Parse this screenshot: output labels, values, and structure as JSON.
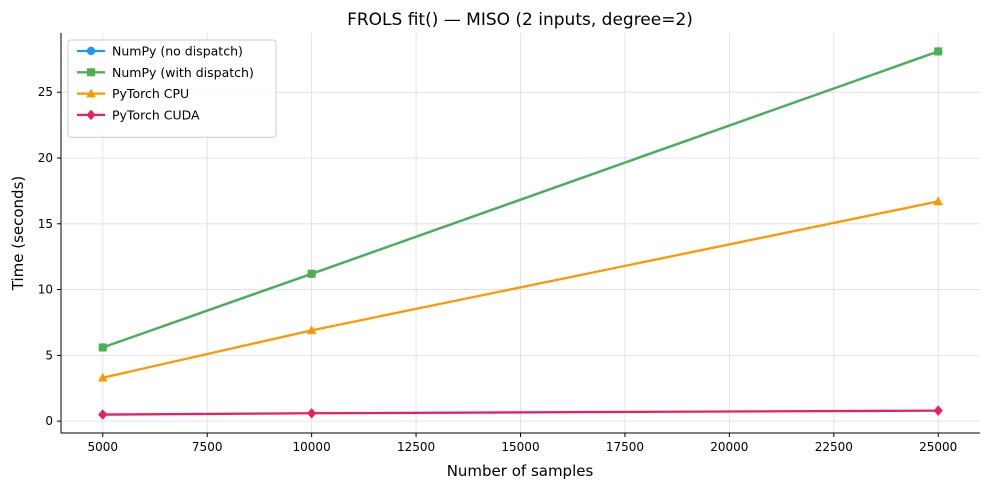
{
  "chart_data": {
    "type": "line",
    "title": "FROLS fit() — MISO (2 inputs, degree=2)",
    "xlabel": "Number of samples",
    "ylabel": "Time (seconds)",
    "x": [
      5000,
      10000,
      25000
    ],
    "xlim": [
      4000,
      26000
    ],
    "ylim": [
      -0.9,
      29.5
    ],
    "xticks": [
      5000,
      7500,
      10000,
      12500,
      15000,
      17500,
      20000,
      22500,
      25000
    ],
    "yticks": [
      0,
      5,
      10,
      15,
      20,
      25
    ],
    "grid": true,
    "legend_position": "upper-left",
    "series": [
      {
        "name": "NumPy (no dispatch)",
        "values": [
          5.6,
          11.2,
          28.1
        ],
        "color": "#2196F3",
        "marker": "circle"
      },
      {
        "name": "NumPy (with dispatch)",
        "values": [
          5.6,
          11.2,
          28.1
        ],
        "color": "#4CAF50",
        "marker": "square"
      },
      {
        "name": "PyTorch CPU",
        "values": [
          3.3,
          6.9,
          16.7
        ],
        "color": "#FF9800",
        "marker": "triangle"
      },
      {
        "name": "PyTorch CUDA",
        "values": [
          0.5,
          0.6,
          0.8
        ],
        "color": "#E91E63",
        "marker": "diamond"
      }
    ]
  }
}
